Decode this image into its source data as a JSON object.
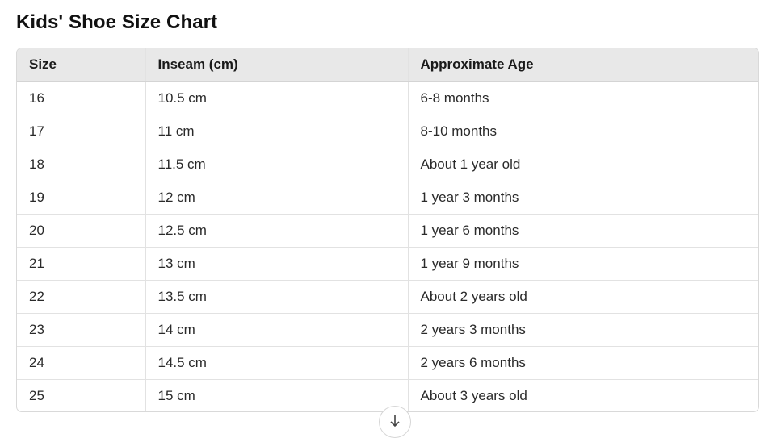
{
  "title": "Kids' Shoe Size Chart",
  "table": {
    "headers": [
      "Size",
      "Inseam (cm)",
      "Approximate Age"
    ],
    "rows": [
      [
        "16",
        "10.5 cm",
        "6-8 months"
      ],
      [
        "17",
        "11 cm",
        "8-10 months"
      ],
      [
        "18",
        "11.5 cm",
        "About 1 year old"
      ],
      [
        "19",
        "12 cm",
        "1 year 3 months"
      ],
      [
        "20",
        "12.5 cm",
        "1 year 6 months"
      ],
      [
        "21",
        "13 cm",
        "1 year 9 months"
      ],
      [
        "22",
        "13.5 cm",
        "About 2 years old"
      ],
      [
        "23",
        "14 cm",
        "2 years 3 months"
      ],
      [
        "24",
        "14.5 cm",
        "2 years 6 months"
      ],
      [
        "25",
        "15 cm",
        "About 3 years old"
      ]
    ]
  },
  "scroll_button": {
    "icon": "arrow-down-icon"
  }
}
